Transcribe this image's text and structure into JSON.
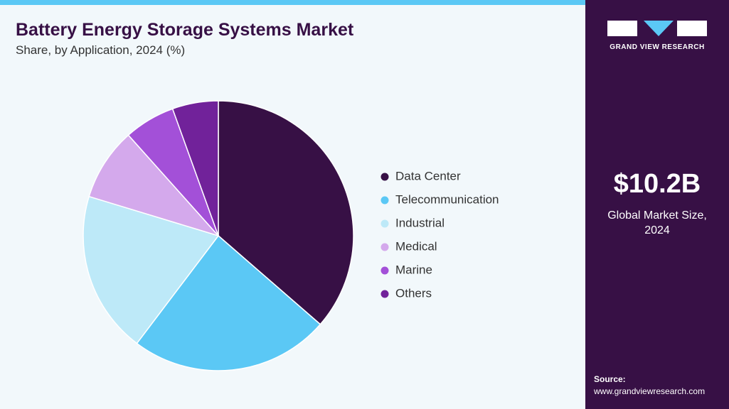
{
  "chart_data": {
    "type": "pie",
    "title": "Battery Energy Storage Systems Market",
    "subtitle": "Share, by Application, 2024 (%)",
    "categories": [
      "Data Center",
      "Telecommunication",
      "Industrial",
      "Medical",
      "Marine",
      "Others"
    ],
    "values": [
      36.4,
      23.9,
      19.4,
      8.7,
      6.1,
      5.5
    ],
    "colors": [
      "#371045",
      "#5bc8f5",
      "#bde9f8",
      "#d4a9ec",
      "#a350d8",
      "#71229a"
    ],
    "legend": "right"
  },
  "sidebar": {
    "brand": "GRAND VIEW RESEARCH",
    "market_size": "$10.2B",
    "market_size_label": "Global Market Size, 2024",
    "source_label": "Source:",
    "source_url": "www.grandviewresearch.com"
  }
}
